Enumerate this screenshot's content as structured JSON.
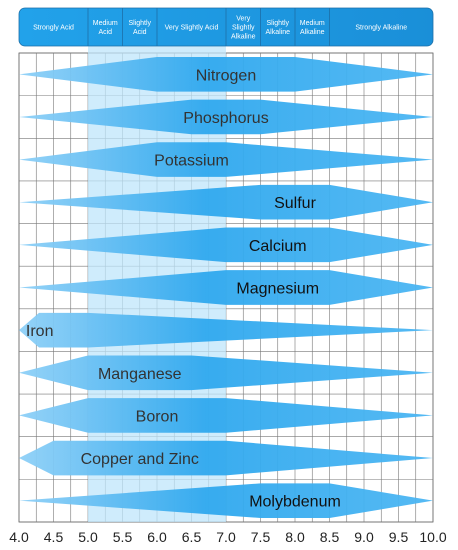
{
  "chart_data": {
    "type": "range-band",
    "title": "",
    "xlabel": "",
    "ylabel": "",
    "xlim": [
      4.0,
      10.0
    ],
    "x_ticks": [
      "4.0",
      "4.5",
      "5.0",
      "5.5",
      "6.0",
      "6.5",
      "7.0",
      "7.5",
      "8.0",
      "8.5",
      "9.0",
      "9.5",
      "10.0"
    ],
    "acidity_categories": [
      {
        "label": "Strongly Acid",
        "from": 4.0,
        "to": 5.0
      },
      {
        "label": "Medium Acid",
        "from": 5.0,
        "to": 5.5
      },
      {
        "label": "Slightly Acid",
        "from": 5.5,
        "to": 6.0
      },
      {
        "label": "Very Slightly Acid",
        "from": 6.0,
        "to": 7.0
      },
      {
        "label": "Very Slightly Alkaline",
        "from": 7.0,
        "to": 7.5
      },
      {
        "label": "Slightly Alkaline",
        "from": 7.5,
        "to": 8.0
      },
      {
        "label": "Medium Alkaline",
        "from": 8.0,
        "to": 8.5
      },
      {
        "label": "Strongly Alkaline",
        "from": 8.5,
        "to": 10.0
      }
    ],
    "highlight_range": [
      5.0,
      7.0
    ],
    "series": [
      {
        "name": "Nitrogen",
        "start": 4.0,
        "peak": 6.0,
        "peak_end": 8.0,
        "end": 10.0
      },
      {
        "name": "Phosphorus",
        "start": 4.0,
        "peak": 6.5,
        "peak_end": 7.5,
        "end": 10.0
      },
      {
        "name": "Potassium",
        "start": 4.0,
        "peak": 6.0,
        "peak_end": 7.0,
        "end": 10.0
      },
      {
        "name": "Sulfur",
        "start": 4.0,
        "peak": 7.5,
        "peak_end": 8.5,
        "end": 10.0
      },
      {
        "name": "Calcium",
        "start": 4.0,
        "peak": 7.0,
        "peak_end": 8.5,
        "end": 10.0
      },
      {
        "name": "Magnesium",
        "start": 4.0,
        "peak": 7.0,
        "peak_end": 8.5,
        "end": 10.0
      },
      {
        "name": "Iron",
        "start": 4.0,
        "peak": 4.0,
        "peak_end": 5.0,
        "end": 10.0
      },
      {
        "name": "Manganese",
        "start": 4.0,
        "peak": 5.0,
        "peak_end": 6.5,
        "end": 10.0
      },
      {
        "name": "Boron",
        "start": 4.0,
        "peak": 5.0,
        "peak_end": 7.0,
        "end": 10.0
      },
      {
        "name": "Copper and Zinc",
        "start": 4.0,
        "peak": 4.5,
        "peak_end": 7.0,
        "end": 10.0
      },
      {
        "name": "Molybdenum",
        "start": 4.0,
        "peak": 7.5,
        "peak_end": 8.5,
        "end": 10.0
      }
    ],
    "grid": true
  }
}
